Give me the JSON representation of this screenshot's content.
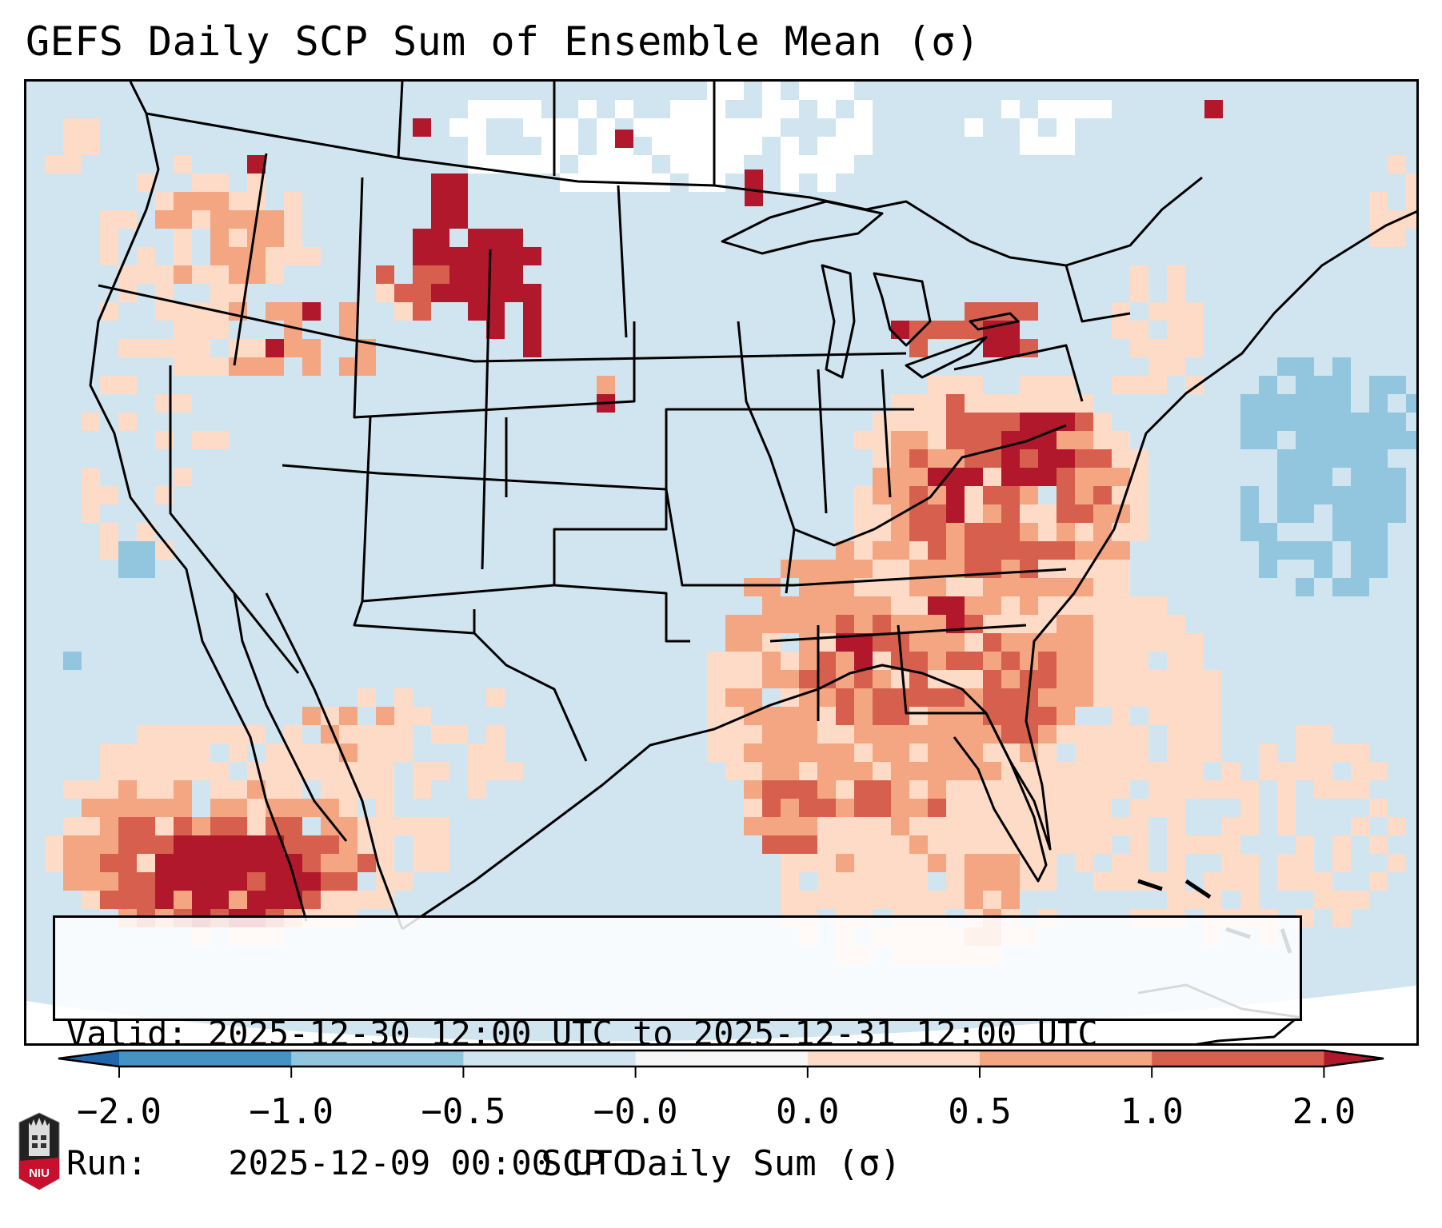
{
  "title": "GEFS Daily SCP Sum of Ensemble Mean (σ)",
  "info_box": {
    "valid_label": "Valid:",
    "valid_value": "2025-12-30 12:00 UTC to 2025-12-31 12:00 UTC",
    "run_label": "Run:",
    "run_value": "2025-12-09 00:00 UTC"
  },
  "colorbar": {
    "label": "SCP Daily Sum (σ)",
    "tick_labels": [
      "−2.0",
      "−1.0",
      "−0.5",
      "−0.0",
      "0.0",
      "0.5",
      "1.0",
      "2.0"
    ],
    "bins": [
      {
        "range": "< -2.0",
        "color": "#2166ac"
      },
      {
        "range": "-2.0 to -1.0",
        "color": "#4393c3"
      },
      {
        "range": "-1.0 to -0.5",
        "color": "#92c5de"
      },
      {
        "range": "-0.5 to -0.0",
        "color": "#d1e5f0"
      },
      {
        "range": "-0.0 to 0.0",
        "color": "#f7f7f7"
      },
      {
        "range": "0.0 to 0.5",
        "color": "#fddbc7"
      },
      {
        "range": "0.5 to 1.0",
        "color": "#f4a582"
      },
      {
        "range": "1.0 to 2.0",
        "color": "#d6604d"
      },
      {
        "range": "> 2.0",
        "color": "#b2182b"
      }
    ],
    "extend": "both"
  },
  "map": {
    "projection": "Lambert Conformal - CONUS",
    "ocean_land_background_color": "#d1e5f0",
    "highlights": [
      {
        "region": "Montana/Wyoming High Plains",
        "category": "> 2.0"
      },
      {
        "region": "Northwestern Mexico",
        "category": "> 2.0"
      },
      {
        "region": "Ohio Valley / Lower Michigan / Ontario",
        "category": "1.0 to 2.0"
      },
      {
        "region": "Southeast US / Gulf Coast",
        "category": "0.5 to 1.0"
      },
      {
        "region": "Western Atlantic",
        "category": "-1.0 to -0.5"
      },
      {
        "region": "Southern Canadian Prairies",
        "category": "-0.0 to 0.0"
      }
    ]
  },
  "logo": {
    "text": "NIU"
  }
}
